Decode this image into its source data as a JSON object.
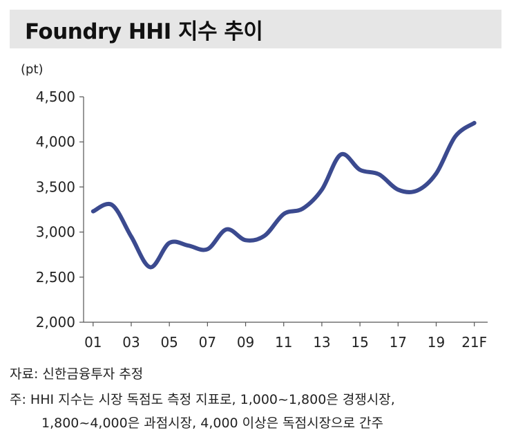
{
  "header": {
    "title": "Foundry HHI 지수 추이"
  },
  "chart_data": {
    "type": "line",
    "unit_label": "(pt)",
    "ylim": [
      2000,
      4500
    ],
    "y_ticks": [
      2000,
      2500,
      3000,
      3500,
      4000,
      4500
    ],
    "y_tick_labels": [
      "2,000",
      "2,500",
      "3,000",
      "3,500",
      "4,000",
      "4,500"
    ],
    "x_ticks": [
      2001,
      2003,
      2005,
      2007,
      2009,
      2011,
      2013,
      2015,
      2017,
      2019,
      2021
    ],
    "x_tick_labels": [
      "01",
      "03",
      "05",
      "07",
      "09",
      "11",
      "13",
      "15",
      "17",
      "19",
      "21F"
    ],
    "xlim": [
      2000.5,
      2021.7
    ],
    "grid": false,
    "line_color": "#3b4a8f",
    "series": [
      {
        "x": [
          2001,
          2002,
          2003,
          2004,
          2005,
          2006,
          2007,
          2008,
          2009,
          2010,
          2011,
          2012,
          2013,
          2014,
          2015,
          2016,
          2017,
          2018,
          2019,
          2020,
          2021
        ],
        "values": [
          3230,
          3300,
          2950,
          2610,
          2880,
          2850,
          2810,
          3030,
          2910,
          2960,
          3200,
          3260,
          3470,
          3860,
          3690,
          3640,
          3470,
          3460,
          3650,
          4060,
          4210
        ]
      }
    ]
  },
  "footer": {
    "source": "자료: 신한금융투자 추정",
    "note_line1": "주: HHI 지수는 시장 독점도 측정 지표로, 1,000~1,800은 경쟁시장,",
    "note_line2": "1,800~4,000은 과점시장, 4,000 이상은 독점시장으로 간주"
  }
}
